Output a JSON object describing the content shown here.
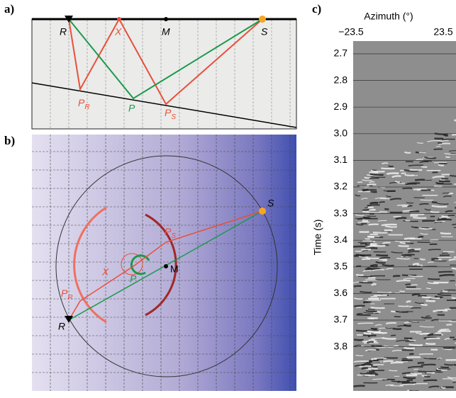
{
  "panel_a": {
    "label": "a)",
    "R": "R",
    "X": "X",
    "M": "M",
    "S": "S",
    "PR": {
      "base": "P",
      "sub": "R"
    },
    "P": "P",
    "PS": {
      "base": "P",
      "sub": "S"
    }
  },
  "panel_b": {
    "label": "b)",
    "S": "S",
    "PS": {
      "base": "P",
      "sub": "S"
    },
    "X": "X",
    "M": "M",
    "P": "P",
    "PR": {
      "base": "P",
      "sub": "R"
    },
    "R": "R"
  },
  "panel_c": {
    "label": "c)",
    "x_axis_title": "Azimuth (°)",
    "x_ticks": [
      "−23.5",
      "23.5"
    ],
    "y_axis_title": "Time (s)",
    "y_ticks": [
      "2.7",
      "2.8",
      "2.9",
      "3.0",
      "3.1",
      "3.2",
      "3.3",
      "3.4",
      "3.5",
      "3.6",
      "3.7",
      "3.8"
    ]
  }
}
